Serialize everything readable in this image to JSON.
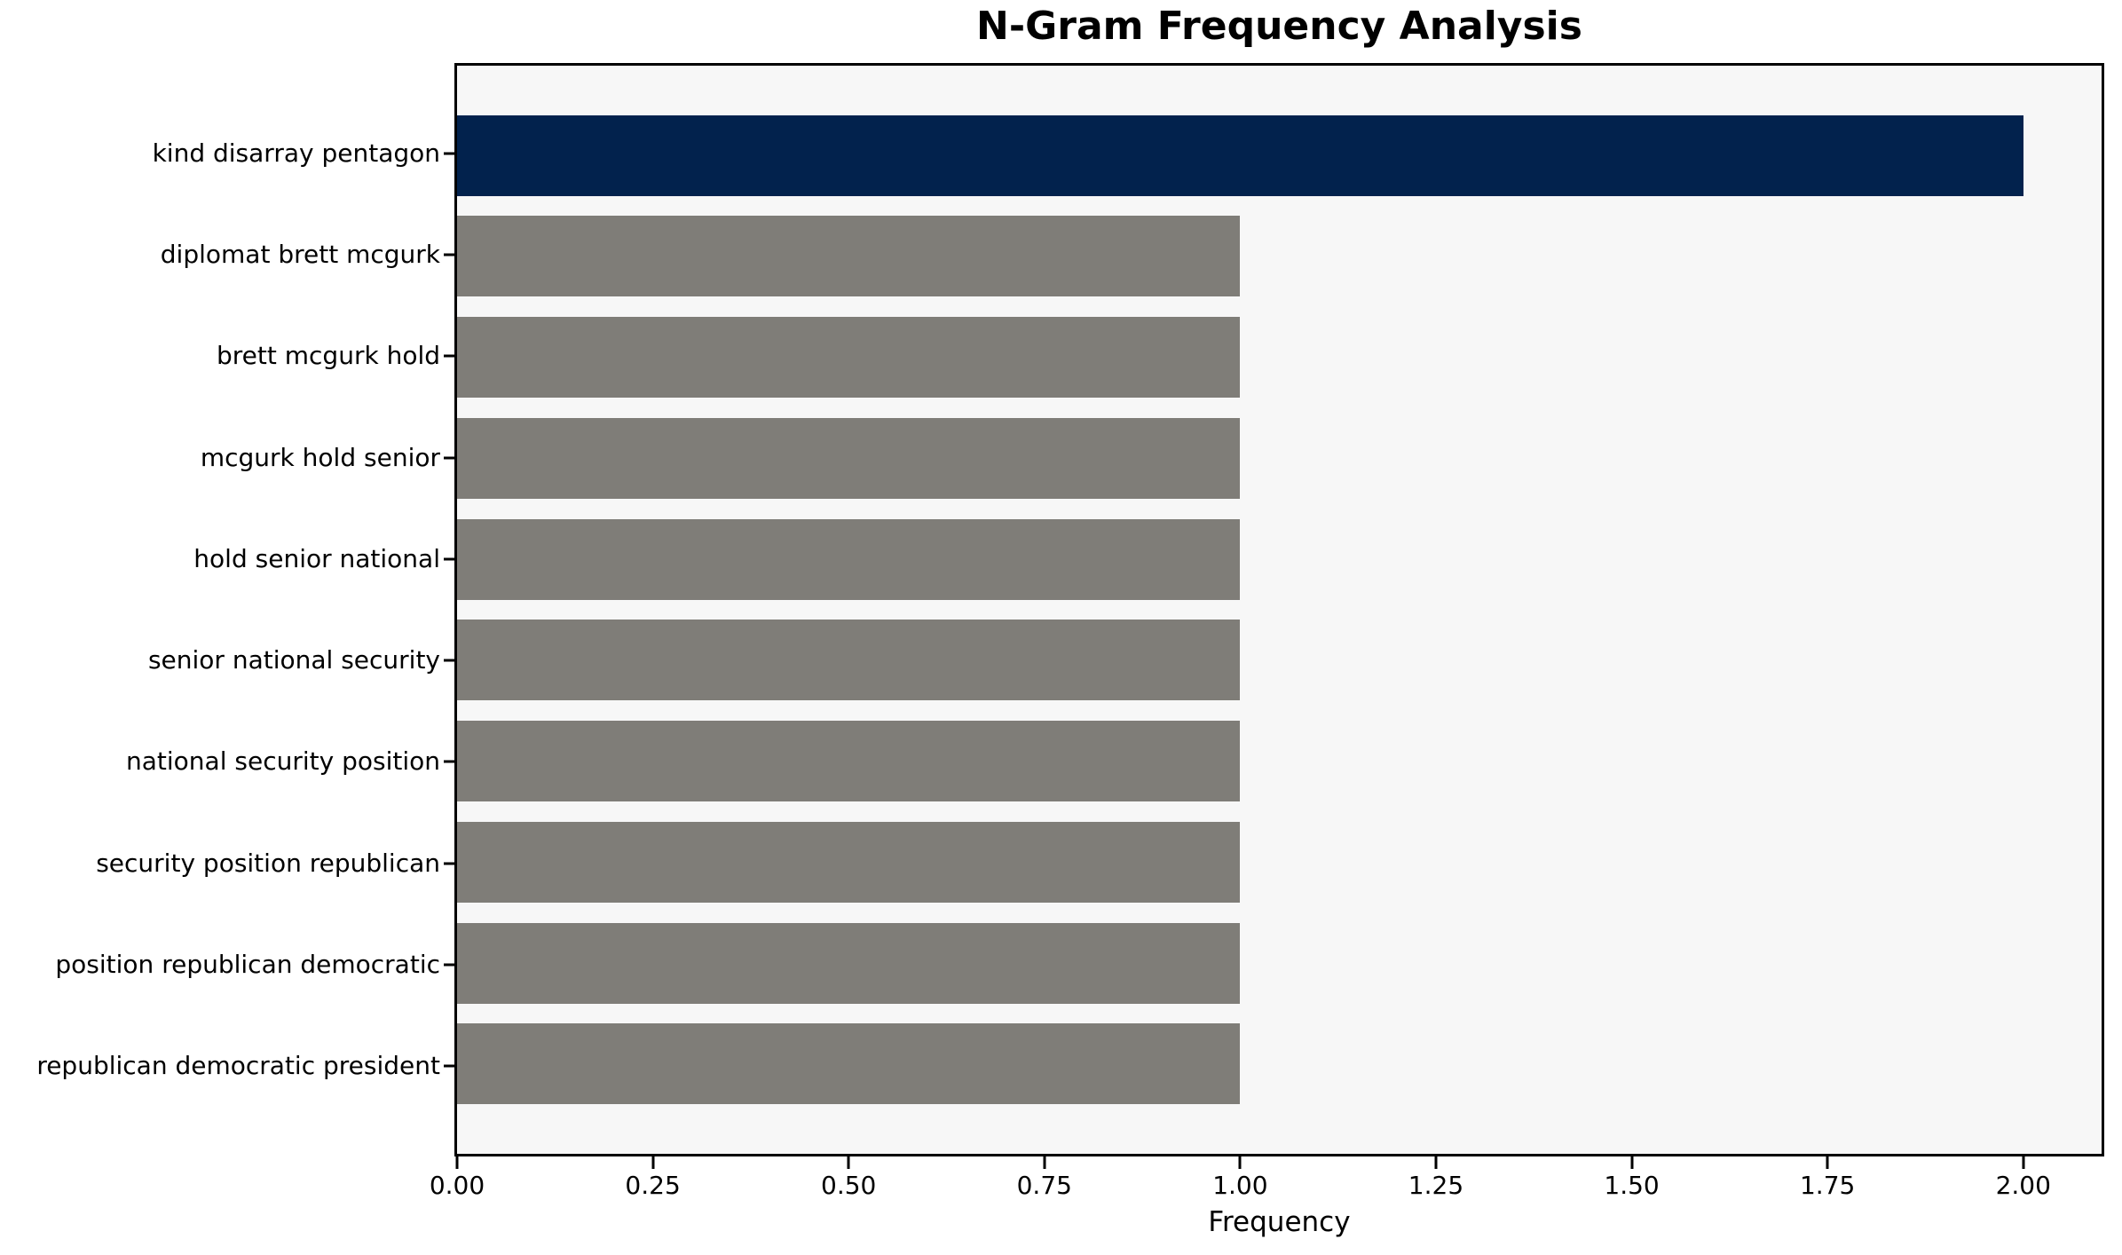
{
  "chart_data": {
    "type": "bar",
    "orientation": "horizontal",
    "title": "N-Gram Frequency Analysis",
    "xlabel": "Frequency",
    "ylabel": "",
    "categories": [
      "kind disarray pentagon",
      "diplomat brett mcgurk",
      "brett mcgurk hold",
      "mcgurk hold senior",
      "hold senior national",
      "senior national security",
      "national security position",
      "security position republican",
      "position republican democratic",
      "republican democratic president"
    ],
    "values": [
      2,
      1,
      1,
      1,
      1,
      1,
      1,
      1,
      1,
      1
    ],
    "bar_colors": [
      "#02224d",
      "#7f7d78",
      "#7f7d78",
      "#7f7d78",
      "#7f7d78",
      "#7f7d78",
      "#7f7d78",
      "#7f7d78",
      "#7f7d78",
      "#7f7d78"
    ],
    "xticks": [
      0.0,
      0.25,
      0.5,
      0.75,
      1.0,
      1.25,
      1.5,
      1.75,
      2.0
    ],
    "xtick_labels": [
      "0.00",
      "0.25",
      "0.50",
      "0.75",
      "1.00",
      "1.25",
      "1.50",
      "1.75",
      "2.00"
    ],
    "xlim": [
      0,
      2.1
    ],
    "ylim": [
      -0.89,
      9.89
    ],
    "bar_height_units": 0.8,
    "grid": false,
    "legend": null,
    "colors": {
      "highlight_bar": "#02224d",
      "default_bar": "#7f7d78",
      "plot_background": "#f7f7f7",
      "figure_background": "#ffffff",
      "spine": "#000000",
      "text": "#000000"
    }
  }
}
